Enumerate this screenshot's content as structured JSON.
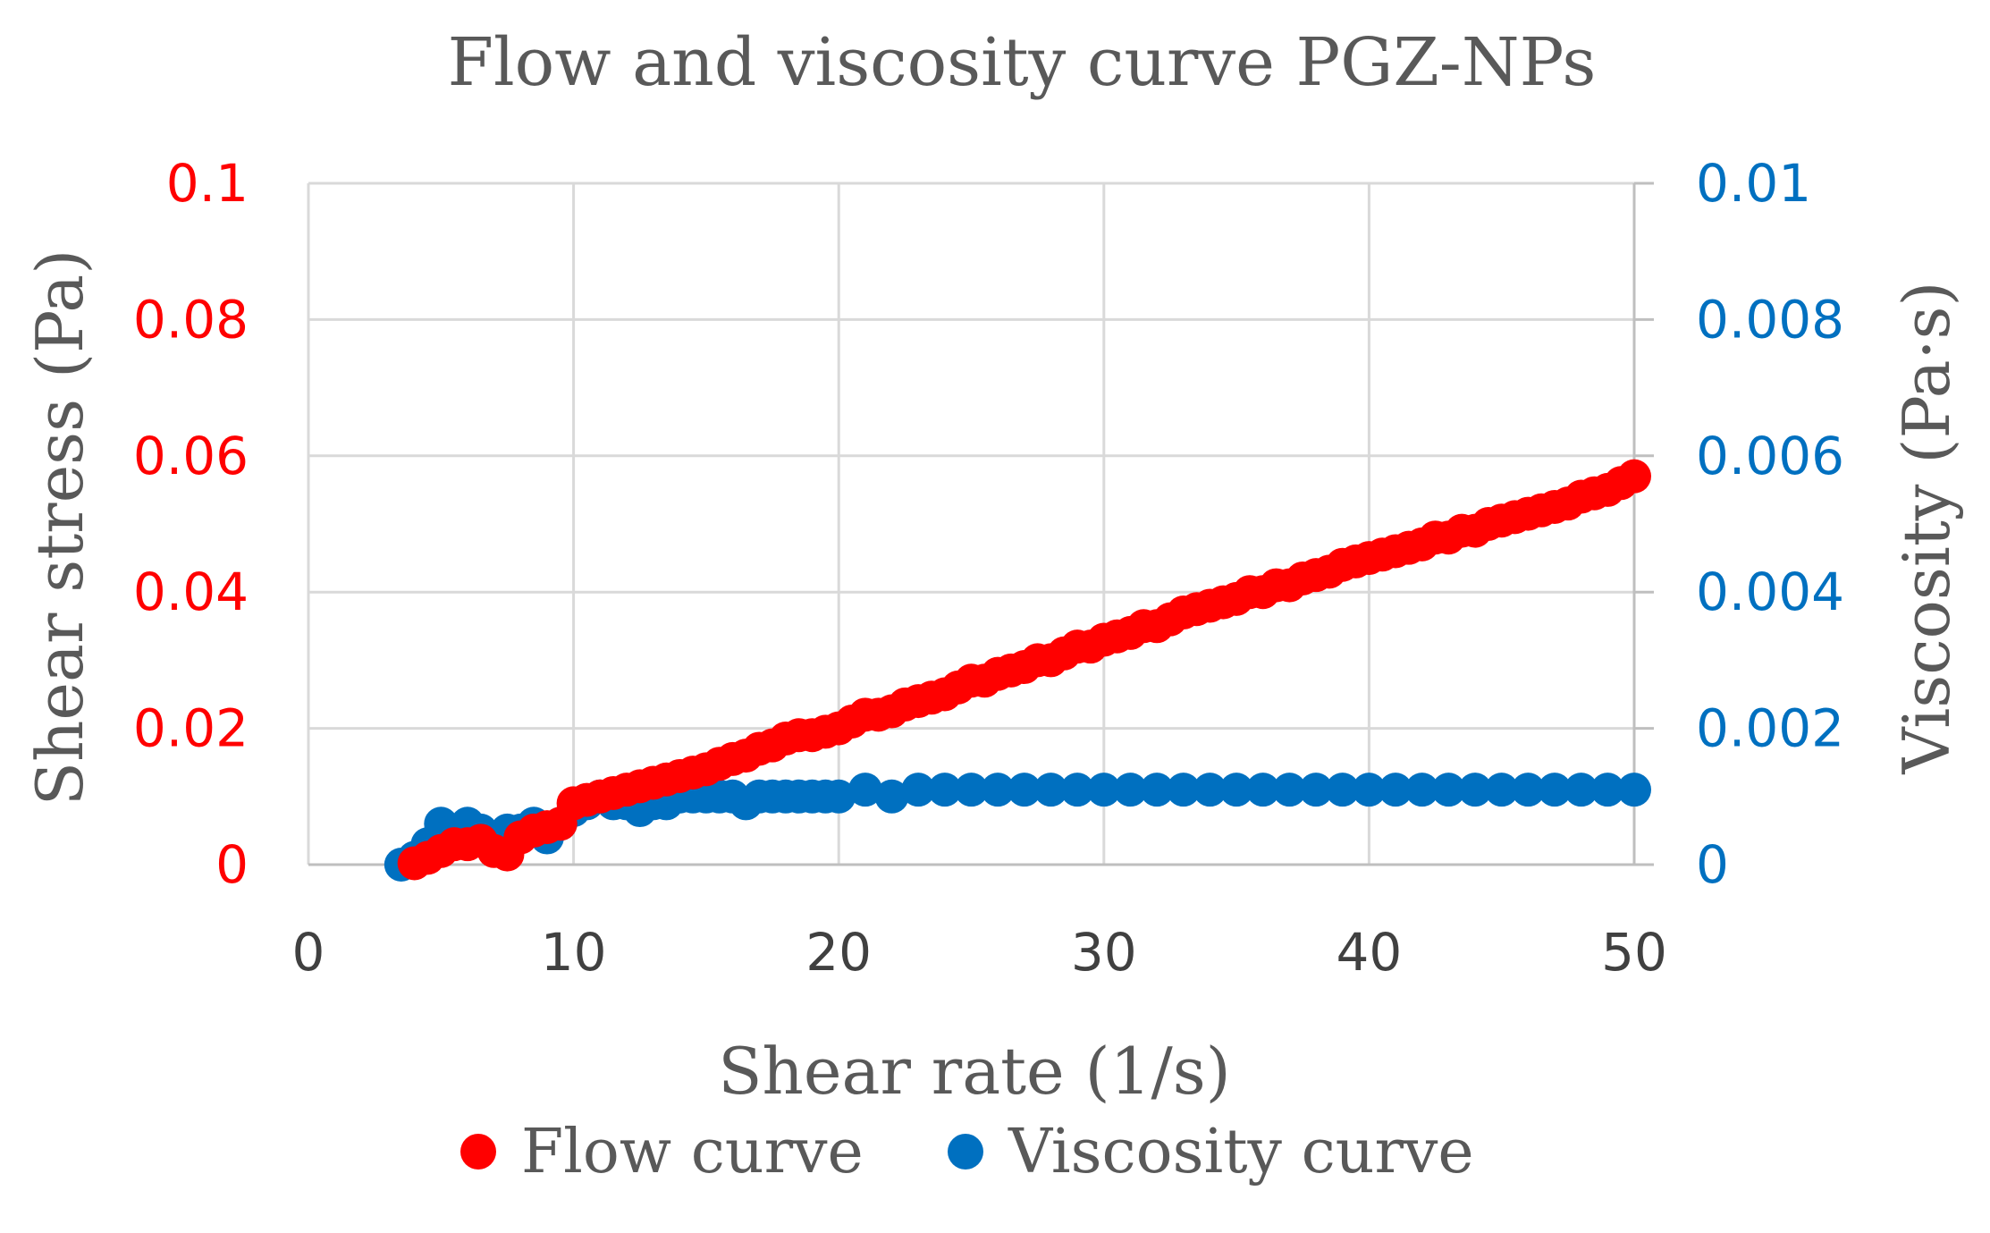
{
  "chart_data": {
    "type": "scatter",
    "title": "Flow and viscosity curve PGZ-NPs",
    "xlabel": "Shear rate (1/s)",
    "ylabel_left": "Shear stress (Pa)",
    "ylabel_right": "Viscosity (Pa·s)",
    "xlim": [
      0,
      50
    ],
    "ylim_left": [
      0,
      0.1
    ],
    "ylim_right": [
      0,
      0.01
    ],
    "x_ticks": [
      "0",
      "10",
      "20",
      "30",
      "40",
      "50"
    ],
    "y_left_ticks": [
      "0",
      "0.02",
      "0.04",
      "0.06",
      "0.08",
      "0.1"
    ],
    "y_right_ticks": [
      "0",
      "0.002",
      "0.004",
      "0.006",
      "0.008",
      "0.01"
    ],
    "grid": true,
    "legend_position": "bottom",
    "colors": {
      "flow": "#ff0000",
      "viscosity": "#0070c0"
    },
    "series": [
      {
        "name": "Flow curve",
        "axis": "left",
        "color": "#ff0000",
        "x": [
          4.0,
          4.5,
          5.0,
          5.5,
          6.0,
          6.5,
          7.0,
          7.5,
          8.0,
          8.5,
          9.0,
          9.5,
          10.0,
          10.5,
          11.0,
          11.5,
          12.0,
          12.5,
          13.0,
          13.5,
          14.0,
          14.5,
          15.0,
          15.5,
          16.0,
          16.5,
          17.0,
          17.5,
          18.0,
          18.5,
          19.0,
          19.5,
          20.0,
          20.5,
          21.0,
          21.5,
          22.0,
          22.5,
          23.0,
          23.5,
          24.0,
          24.5,
          25.0,
          25.5,
          26.0,
          26.5,
          27.0,
          27.5,
          28.0,
          28.5,
          29.0,
          29.5,
          30.0,
          30.5,
          31.0,
          31.5,
          32.0,
          32.5,
          33.0,
          33.5,
          34.0,
          34.5,
          35.0,
          35.5,
          36.0,
          36.5,
          37.0,
          37.5,
          38.0,
          38.5,
          39.0,
          39.5,
          40.0,
          40.5,
          41.0,
          41.5,
          42.0,
          42.5,
          43.0,
          43.5,
          44.0,
          44.5,
          45.0,
          45.5,
          46.0,
          46.5,
          47.0,
          47.5,
          48.0,
          48.5,
          49.0,
          49.5,
          50.0
        ],
        "y": [
          0.0002,
          0.001,
          0.002,
          0.003,
          0.003,
          0.0035,
          0.002,
          0.0015,
          0.004,
          0.005,
          0.0055,
          0.006,
          0.009,
          0.0095,
          0.01,
          0.0105,
          0.011,
          0.0115,
          0.012,
          0.0125,
          0.013,
          0.0135,
          0.014,
          0.0148,
          0.0155,
          0.016,
          0.017,
          0.0175,
          0.0185,
          0.019,
          0.019,
          0.0195,
          0.02,
          0.021,
          0.022,
          0.022,
          0.0225,
          0.0235,
          0.024,
          0.0245,
          0.025,
          0.026,
          0.027,
          0.027,
          0.028,
          0.0285,
          0.029,
          0.03,
          0.03,
          0.031,
          0.032,
          0.032,
          0.033,
          0.0335,
          0.034,
          0.035,
          0.035,
          0.036,
          0.037,
          0.0375,
          0.038,
          0.0385,
          0.039,
          0.04,
          0.04,
          0.041,
          0.041,
          0.042,
          0.0425,
          0.043,
          0.044,
          0.0445,
          0.045,
          0.0455,
          0.046,
          0.0465,
          0.047,
          0.048,
          0.048,
          0.049,
          0.049,
          0.05,
          0.0505,
          0.051,
          0.0515,
          0.052,
          0.0525,
          0.053,
          0.054,
          0.0545,
          0.055,
          0.056,
          0.057
        ]
      },
      {
        "name": "Viscosity curve",
        "axis": "right",
        "color": "#0070c0",
        "x": [
          3.5,
          4.0,
          4.5,
          5.0,
          5.5,
          6.0,
          6.5,
          7.0,
          7.5,
          8.0,
          8.5,
          9.0,
          9.5,
          10.0,
          10.5,
          11.0,
          11.5,
          12.0,
          12.5,
          13.0,
          13.5,
          14.0,
          14.5,
          15.0,
          15.5,
          16.0,
          16.5,
          17.0,
          17.5,
          18.0,
          18.5,
          19.0,
          19.5,
          20.0,
          21.0,
          22.0,
          23.0,
          24.0,
          25.0,
          26.0,
          27.0,
          28.0,
          29.0,
          30.0,
          31.0,
          32.0,
          33.0,
          34.0,
          35.0,
          36.0,
          37.0,
          38.0,
          39.0,
          40.0,
          41.0,
          42.0,
          43.0,
          44.0,
          45.0,
          46.0,
          47.0,
          48.0,
          49.0,
          50.0
        ],
        "y": [
          0.0,
          0.0001,
          0.0003,
          0.0006,
          0.0005,
          0.0006,
          0.0005,
          0.0004,
          0.0005,
          0.0005,
          0.0006,
          0.0004,
          0.0006,
          0.0008,
          0.0009,
          0.001,
          0.0009,
          0.0009,
          0.0008,
          0.0009,
          0.0009,
          0.001,
          0.001,
          0.001,
          0.001,
          0.001,
          0.0009,
          0.001,
          0.001,
          0.001,
          0.001,
          0.001,
          0.001,
          0.001,
          0.0011,
          0.001,
          0.0011,
          0.0011,
          0.0011,
          0.0011,
          0.0011,
          0.0011,
          0.0011,
          0.0011,
          0.0011,
          0.0011,
          0.0011,
          0.0011,
          0.0011,
          0.0011,
          0.0011,
          0.0011,
          0.0011,
          0.0011,
          0.0011,
          0.0011,
          0.0011,
          0.0011,
          0.0011,
          0.0011,
          0.0011,
          0.0011,
          0.0011,
          0.0011
        ]
      }
    ]
  }
}
